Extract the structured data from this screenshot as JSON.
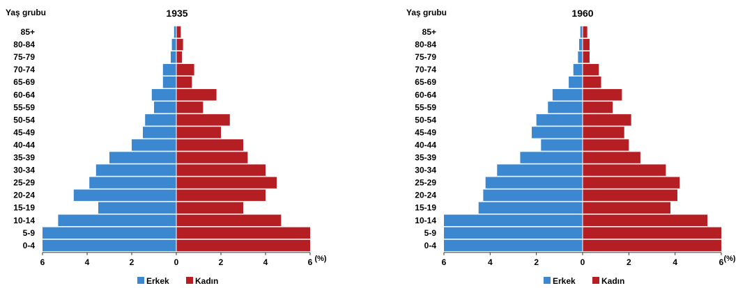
{
  "chart_data": [
    {
      "type": "bar",
      "orientation": "horizontal",
      "subtype": "population-pyramid",
      "title": "1935",
      "ylabel": "Yaş grubu",
      "xlabel": "(%)",
      "xticks": [
        "6",
        "4",
        "2",
        "0",
        "2",
        "4",
        "6"
      ],
      "xlim": [
        -6,
        6
      ],
      "categories": [
        "0-4",
        "5-9",
        "10-14",
        "15-19",
        "20-24",
        "25-29",
        "30-34",
        "35-39",
        "40-44",
        "45-49",
        "50-54",
        "55-59",
        "60-64",
        "65-69",
        "70-74",
        "75-79",
        "80-84",
        "85+"
      ],
      "series": [
        {
          "name": "Erkek",
          "color": "#3b87d0",
          "values": [
            6.0,
            6.0,
            5.3,
            3.5,
            4.6,
            3.9,
            3.6,
            3.0,
            2.0,
            1.5,
            1.4,
            1.0,
            1.1,
            0.6,
            0.6,
            0.25,
            0.2,
            0.1
          ]
        },
        {
          "name": "Kadın",
          "color": "#b51e23",
          "values": [
            6.0,
            6.0,
            4.7,
            3.0,
            4.0,
            4.5,
            4.0,
            3.2,
            3.0,
            2.0,
            2.4,
            1.2,
            1.8,
            0.7,
            0.8,
            0.25,
            0.3,
            0.2
          ]
        }
      ],
      "legend": "bottom"
    },
    {
      "type": "bar",
      "orientation": "horizontal",
      "subtype": "population-pyramid",
      "title": "1960",
      "ylabel": "Yaş grubu",
      "xlabel": "(%)",
      "xticks": [
        "6",
        "4",
        "2",
        "0",
        "2",
        "4",
        "6"
      ],
      "xlim": [
        -6,
        6
      ],
      "categories": [
        "0-4",
        "5-9",
        "10-14",
        "15-19",
        "20-24",
        "25-29",
        "30-34",
        "35-39",
        "40-44",
        "45-49",
        "50-54",
        "55-59",
        "60-64",
        "65-69",
        "70-74",
        "75-79",
        "80-84",
        "85+"
      ],
      "series": [
        {
          "name": "Erkek",
          "color": "#3b87d0",
          "values": [
            6.0,
            6.0,
            6.0,
            4.5,
            4.3,
            4.2,
            3.7,
            2.7,
            1.8,
            2.2,
            2.0,
            1.5,
            1.3,
            0.6,
            0.4,
            0.2,
            0.15,
            0.1
          ]
        },
        {
          "name": "Kadın",
          "color": "#b51e23",
          "values": [
            6.0,
            6.0,
            5.4,
            3.8,
            4.1,
            4.2,
            3.6,
            2.5,
            2.0,
            1.8,
            2.1,
            1.3,
            1.7,
            0.8,
            0.7,
            0.3,
            0.3,
            0.2
          ]
        }
      ],
      "legend": "bottom"
    }
  ]
}
